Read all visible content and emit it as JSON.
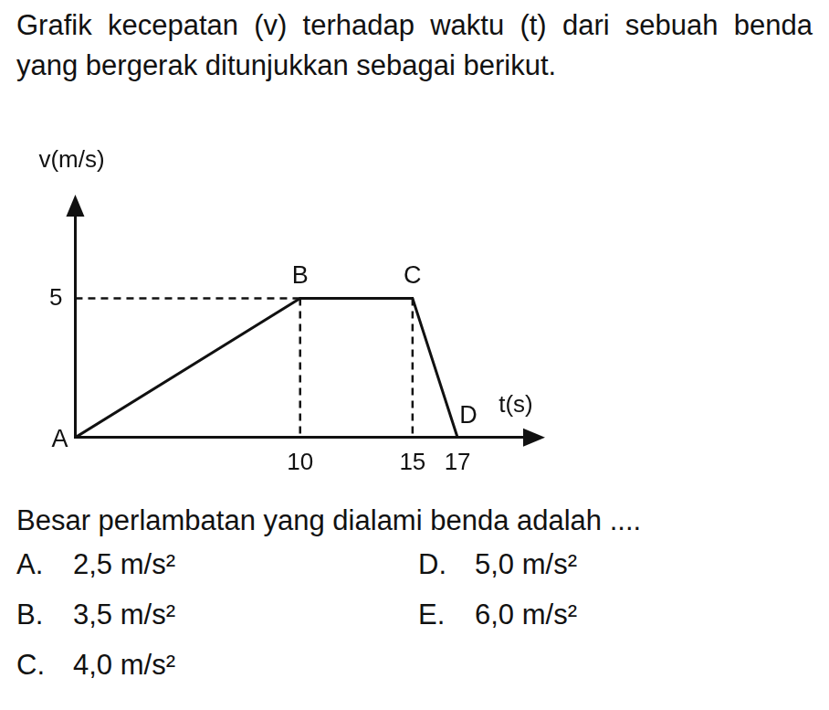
{
  "question": {
    "text": "Grafik kecepatan (v) terhadap waktu (t) dari sebuah benda yang bergerak ditunjukkan sebagai berikut.",
    "prompt": "Besar perlambatan yang dialami benda adalah ....",
    "options": [
      {
        "letter": "A.",
        "text": "2,5 m/s²"
      },
      {
        "letter": "B.",
        "text": "3,5 m/s²"
      },
      {
        "letter": "C.",
        "text": "4,0 m/s²"
      },
      {
        "letter": "D.",
        "text": "5,0 m/s²"
      },
      {
        "letter": "E.",
        "text": "6,0 m/s²"
      }
    ]
  },
  "chart_data": {
    "type": "line",
    "x_label": "t(s)",
    "y_label": "v(m/s)",
    "x": [
      0,
      10,
      15,
      17
    ],
    "values": [
      0,
      5,
      5,
      0
    ],
    "point_labels": [
      "A",
      "B",
      "C",
      "D"
    ],
    "xlim": [
      0,
      20
    ],
    "xticks": [
      10,
      15,
      17
    ],
    "ylim": [
      0,
      8
    ],
    "yticks": [
      5
    ],
    "color": "#111111",
    "grid": false
  }
}
